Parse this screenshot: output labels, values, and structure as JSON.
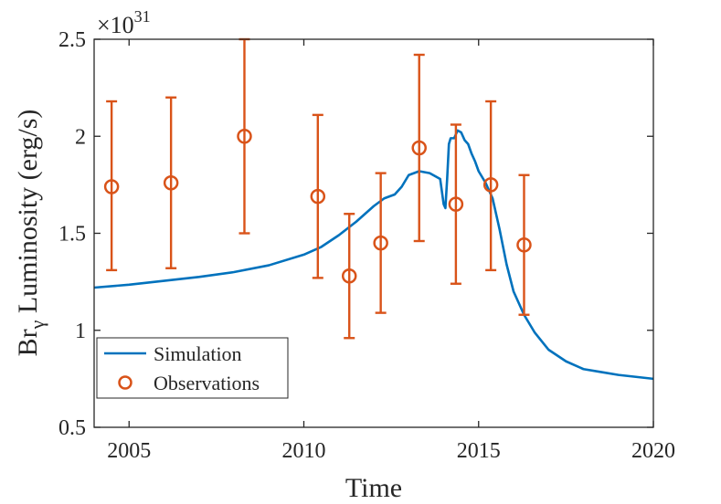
{
  "chart_data": {
    "type": "line+errorbar",
    "xlabel": "Time",
    "ylabel_main": "Br",
    "ylabel_sub": "γ",
    "ylabel_rest": " Luminosity (erg/s)",
    "y_multiplier_base": "×10",
    "y_multiplier_exp": "31",
    "xlim": [
      2004,
      2020
    ],
    "ylim": [
      0.5,
      2.5
    ],
    "xticks": [
      2005,
      2010,
      2015,
      2020
    ],
    "xtick_labels": [
      "2005",
      "2010",
      "2015",
      "2020"
    ],
    "yticks": [
      0.5,
      1,
      1.5,
      2,
      2.5
    ],
    "ytick_labels": [
      "0.5",
      "1",
      "1.5",
      "2",
      "2.5"
    ],
    "legend": {
      "position": "bottom-left",
      "entries": [
        "Simulation",
        "Observations"
      ]
    },
    "colors": {
      "simulation": "#0072BD",
      "observations": "#D95319",
      "axis": "#262626"
    },
    "series": [
      {
        "name": "Simulation",
        "kind": "line",
        "x": [
          2004.0,
          2005.0,
          2006.0,
          2007.0,
          2008.0,
          2009.0,
          2010.0,
          2010.5,
          2011.0,
          2011.5,
          2012.0,
          2012.3,
          2012.6,
          2012.8,
          2013.0,
          2013.3,
          2013.6,
          2013.9,
          2014.0,
          2014.05,
          2014.1,
          2014.15,
          2014.2,
          2014.3,
          2014.4,
          2014.5,
          2014.6,
          2014.7,
          2014.8,
          2014.9,
          2015.0,
          2015.2,
          2015.4,
          2015.6,
          2015.8,
          2016.0,
          2016.3,
          2016.6,
          2017.0,
          2017.5,
          2018.0,
          2018.5,
          2019.0,
          2019.5,
          2020.0
        ],
        "y": [
          1.22,
          1.235,
          1.255,
          1.275,
          1.3,
          1.335,
          1.39,
          1.43,
          1.49,
          1.56,
          1.64,
          1.68,
          1.7,
          1.74,
          1.8,
          1.82,
          1.81,
          1.78,
          1.65,
          1.63,
          1.78,
          1.96,
          1.99,
          1.99,
          2.03,
          2.02,
          1.98,
          1.96,
          1.91,
          1.87,
          1.82,
          1.76,
          1.68,
          1.52,
          1.34,
          1.2,
          1.08,
          0.99,
          0.9,
          0.84,
          0.8,
          0.785,
          0.77,
          0.76,
          0.75
        ]
      },
      {
        "name": "Observations",
        "kind": "errorbar",
        "x": [
          2004.5,
          2006.2,
          2008.3,
          2010.4,
          2011.3,
          2012.2,
          2013.3,
          2014.35,
          2015.35,
          2016.3
        ],
        "y": [
          1.74,
          1.76,
          2.0,
          1.69,
          1.28,
          1.45,
          1.94,
          1.65,
          1.75,
          1.44
        ],
        "err_low": [
          1.31,
          1.32,
          1.5,
          1.27,
          0.96,
          1.09,
          1.46,
          1.24,
          1.31,
          1.08
        ],
        "err_high": [
          2.18,
          2.2,
          2.5,
          2.11,
          1.6,
          1.81,
          2.42,
          2.06,
          2.18,
          1.8
        ]
      }
    ]
  }
}
